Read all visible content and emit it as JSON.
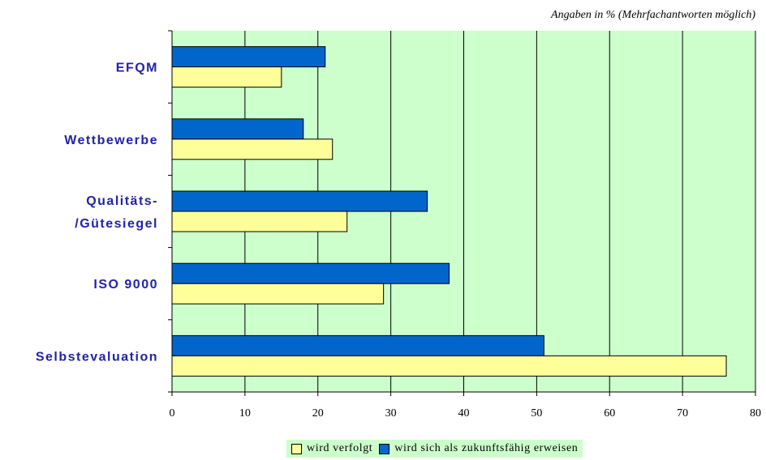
{
  "chart_data": {
    "type": "bar",
    "orientation": "horizontal",
    "subtitle": "Angaben in % (Mehrfachantworten möglich)",
    "categories": [
      [
        "EFQM"
      ],
      [
        "Wettbewerbe"
      ],
      [
        "Qualitäts-",
        "/Gütesiegel"
      ],
      [
        "ISO 9000"
      ],
      [
        "Selbstevaluation"
      ]
    ],
    "series": [
      {
        "name": "wird verfolgt",
        "color": "#ffff99",
        "values": [
          15,
          22,
          24,
          29,
          76
        ]
      },
      {
        "name": "wird sich als zukunftsfähig erweisen",
        "color": "#0066cc",
        "values": [
          21,
          18,
          35,
          38,
          51
        ]
      }
    ],
    "xlim": [
      0,
      80
    ],
    "xticks": [
      0,
      10,
      20,
      30,
      40,
      50,
      60,
      70,
      80
    ],
    "plot_background": "#ccffcc",
    "grid": true,
    "legend_position": "bottom"
  }
}
